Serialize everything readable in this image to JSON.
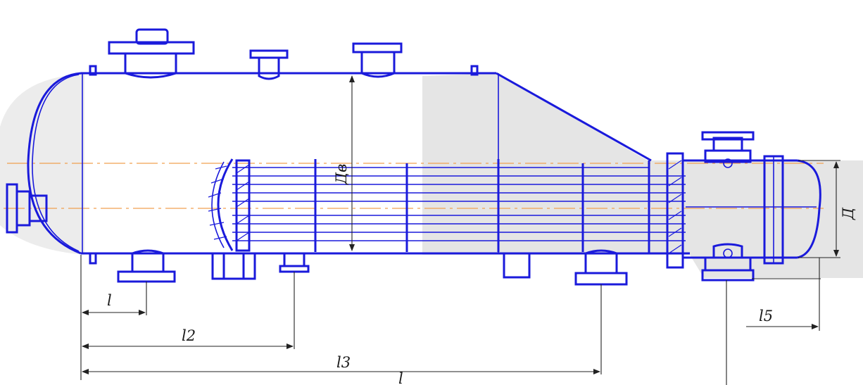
{
  "labels": {
    "l": "l",
    "l2": "l2",
    "l3": "l3",
    "l4": "l",
    "l5": "l5",
    "dv": "Дв",
    "d": "Д"
  },
  "colors": {
    "outline": "#1a1adb",
    "dimension": "#222222",
    "axis": "#f0a050",
    "shade": "#dcdcdc"
  }
}
